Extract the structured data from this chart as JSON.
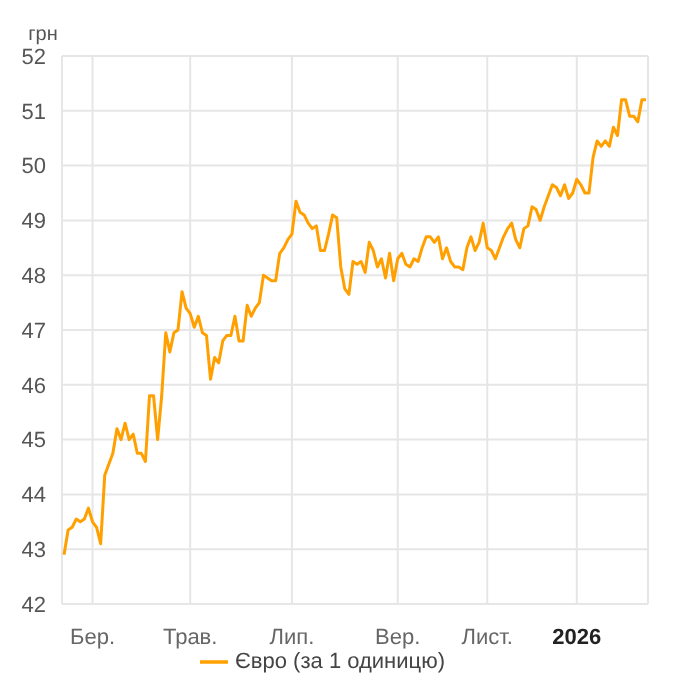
{
  "chart_data": {
    "type": "line",
    "ylabel": "грн",
    "categories": [
      null,
      null,
      null,
      null,
      null,
      null,
      null,
      "Бер.",
      null,
      null,
      null,
      null,
      null,
      null,
      null,
      null,
      null,
      null,
      null,
      null,
      null,
      null,
      null,
      null,
      null,
      null,
      null,
      null,
      null,
      null,
      null,
      "Трав.",
      null,
      null,
      null,
      null,
      null,
      null,
      null,
      null,
      null,
      null,
      null,
      null,
      null,
      null,
      null,
      null,
      null,
      null,
      null,
      null,
      null,
      null,
      null,
      null,
      "Лип.",
      null,
      null,
      null,
      null,
      null,
      null,
      null,
      null,
      null,
      null,
      null,
      null,
      null,
      null,
      null,
      null,
      null,
      null,
      null,
      null,
      null,
      null,
      null,
      null,
      null,
      "Вер.",
      null,
      null,
      null,
      null,
      null,
      null,
      null,
      null,
      null,
      null,
      null,
      null,
      null,
      null,
      null,
      null,
      null,
      null,
      null,
      null,
      null,
      "Лист.",
      null,
      null,
      null,
      null,
      null,
      null,
      null,
      null,
      null,
      null,
      null,
      null,
      null,
      null,
      null,
      null,
      null,
      null,
      null,
      null,
      null,
      "2026",
      null,
      null,
      null,
      null,
      null,
      null,
      null,
      null,
      null,
      null,
      null,
      null,
      null,
      null,
      null,
      null,
      null
    ],
    "series": [
      {
        "name": "Євро (за 1 одиницю)",
        "color": "#ffa000",
        "values": [
          42.9,
          43.35,
          43.4,
          43.55,
          43.5,
          43.55,
          43.75,
          43.5,
          43.4,
          43.1,
          44.35,
          44.55,
          44.75,
          45.2,
          45.0,
          45.3,
          45.0,
          45.1,
          44.75,
          44.75,
          44.6,
          45.8,
          45.8,
          45.0,
          45.8,
          46.95,
          46.6,
          46.95,
          47.0,
          47.7,
          47.4,
          47.3,
          47.05,
          47.25,
          46.95,
          46.9,
          46.1,
          46.5,
          46.4,
          46.8,
          46.9,
          46.9,
          47.25,
          46.8,
          46.8,
          47.45,
          47.25,
          47.4,
          47.5,
          48.0,
          47.95,
          47.9,
          47.9,
          48.4,
          48.5,
          48.65,
          48.75,
          49.35,
          49.15,
          49.1,
          48.95,
          48.85,
          48.9,
          48.45,
          48.45,
          48.75,
          49.1,
          49.05,
          48.15,
          47.75,
          47.65,
          48.25,
          48.2,
          48.25,
          48.05,
          48.6,
          48.45,
          48.15,
          48.3,
          47.95,
          48.4,
          47.9,
          48.3,
          48.4,
          48.2,
          48.15,
          48.3,
          48.25,
          48.5,
          48.7,
          48.7,
          48.6,
          48.7,
          48.3,
          48.5,
          48.25,
          48.15,
          48.15,
          48.1,
          48.5,
          48.7,
          48.45,
          48.6,
          48.95,
          48.5,
          48.45,
          48.3,
          48.5,
          48.7,
          48.85,
          48.95,
          48.65,
          48.5,
          48.85,
          48.9,
          49.25,
          49.2,
          49.0,
          49.25,
          49.45,
          49.65,
          49.6,
          49.45,
          49.65,
          49.4,
          49.5,
          49.75,
          49.65,
          49.5,
          49.5,
          50.15,
          50.45,
          50.35,
          50.45,
          50.35,
          50.7,
          50.55,
          51.2,
          51.2,
          50.9,
          50.9,
          50.8,
          51.2,
          51.2
        ]
      }
    ],
    "ylim": [
      42,
      52
    ],
    "yticks": [
      42,
      43,
      44,
      45,
      46,
      47,
      48,
      49,
      50,
      51,
      52
    ],
    "grid": true,
    "legend": "bottom",
    "marker": "none",
    "line_style": "solid"
  }
}
